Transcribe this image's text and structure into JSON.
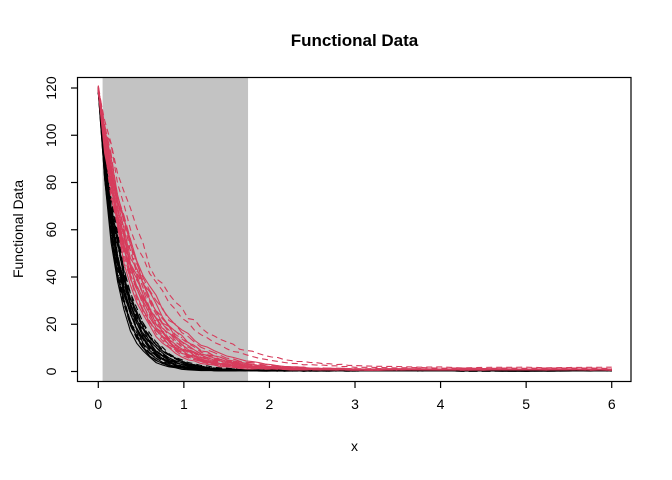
{
  "chart_data": {
    "type": "line",
    "title": "Functional Data",
    "xlabel": "x",
    "ylabel": "Functional Data",
    "x_ticks": [
      0,
      1,
      2,
      3,
      4,
      5,
      6
    ],
    "y_ticks": [
      0,
      20,
      40,
      60,
      80,
      100,
      120
    ],
    "xlim": [
      -0.23,
      6.23
    ],
    "ylim": [
      -4.3,
      124.4
    ],
    "grid": false,
    "legend": "none",
    "shaded_region": {
      "x_start": 0.05,
      "x_end": 1.75,
      "color": "#c3c3c3"
    },
    "curve_model": "y = start * exp(-rate * x) + asymptote, with small random noise",
    "y_start": 119,
    "x_max": 6,
    "noise": {
      "seed": 1337,
      "rel_amplitude": 0.055,
      "abs_amplitude": 0.22
    },
    "colors": {
      "group1": "#000000",
      "group2": "#d63c5c",
      "box": "#000000",
      "background": "#ffffff"
    },
    "groups": [
      {
        "name": "group-1-black",
        "color": "#000000",
        "rates": [
          5.1,
          4.9,
          4.75,
          4.6,
          4.5,
          4.4,
          4.3,
          4.25,
          4.2,
          4.1,
          4.0,
          3.95,
          3.9,
          3.85,
          3.8,
          3.7,
          3.6,
          3.55,
          3.5,
          3.45,
          3.4,
          4.8
        ],
        "asymptotes": [
          0.3,
          0.45,
          0.5,
          0.35,
          0.4,
          0.55,
          0.3,
          0.5,
          0.4,
          0.35,
          0.45,
          0.5,
          0.3,
          0.4,
          0.55,
          0.35,
          0.5,
          0.45,
          0.3,
          0.4,
          0.5,
          0.35
        ],
        "ltys": [
          "solid",
          "dashed",
          "solid",
          "dotdash",
          "dashed",
          "solid",
          "longdash",
          "dashed",
          "solid",
          "dotdash",
          "solid",
          "dashed",
          "longdash",
          "solid",
          "dashed",
          "solid",
          "dotdash",
          "dashed",
          "solid",
          "longdash",
          "dashed",
          "solid"
        ]
      },
      {
        "name": "group-2-pink",
        "color": "#d63c5c",
        "rates": [
          3.1,
          3.0,
          2.95,
          2.9,
          2.85,
          2.8,
          2.75,
          2.7,
          2.65,
          2.6,
          2.55,
          2.5,
          2.45,
          2.4,
          2.35,
          2.3,
          2.25,
          2.2,
          2.1,
          2.0,
          1.75,
          1.6
        ],
        "asymptotes": [
          0.7,
          0.9,
          0.8,
          1.0,
          0.85,
          0.75,
          0.95,
          0.8,
          0.9,
          0.7,
          0.85,
          0.95,
          0.75,
          0.9,
          0.8,
          1.0,
          0.85,
          0.75,
          0.9,
          0.8,
          1.3,
          1.6
        ],
        "ltys": [
          "solid",
          "dashed",
          "dotdash",
          "solid",
          "dashed",
          "longdash",
          "solid",
          "dashed",
          "solid",
          "dotdash",
          "dashed",
          "solid",
          "longdash",
          "dashed",
          "solid",
          "dashed",
          "dotdash",
          "solid",
          "longdash",
          "solid",
          "dashed",
          "dashed"
        ]
      }
    ]
  }
}
